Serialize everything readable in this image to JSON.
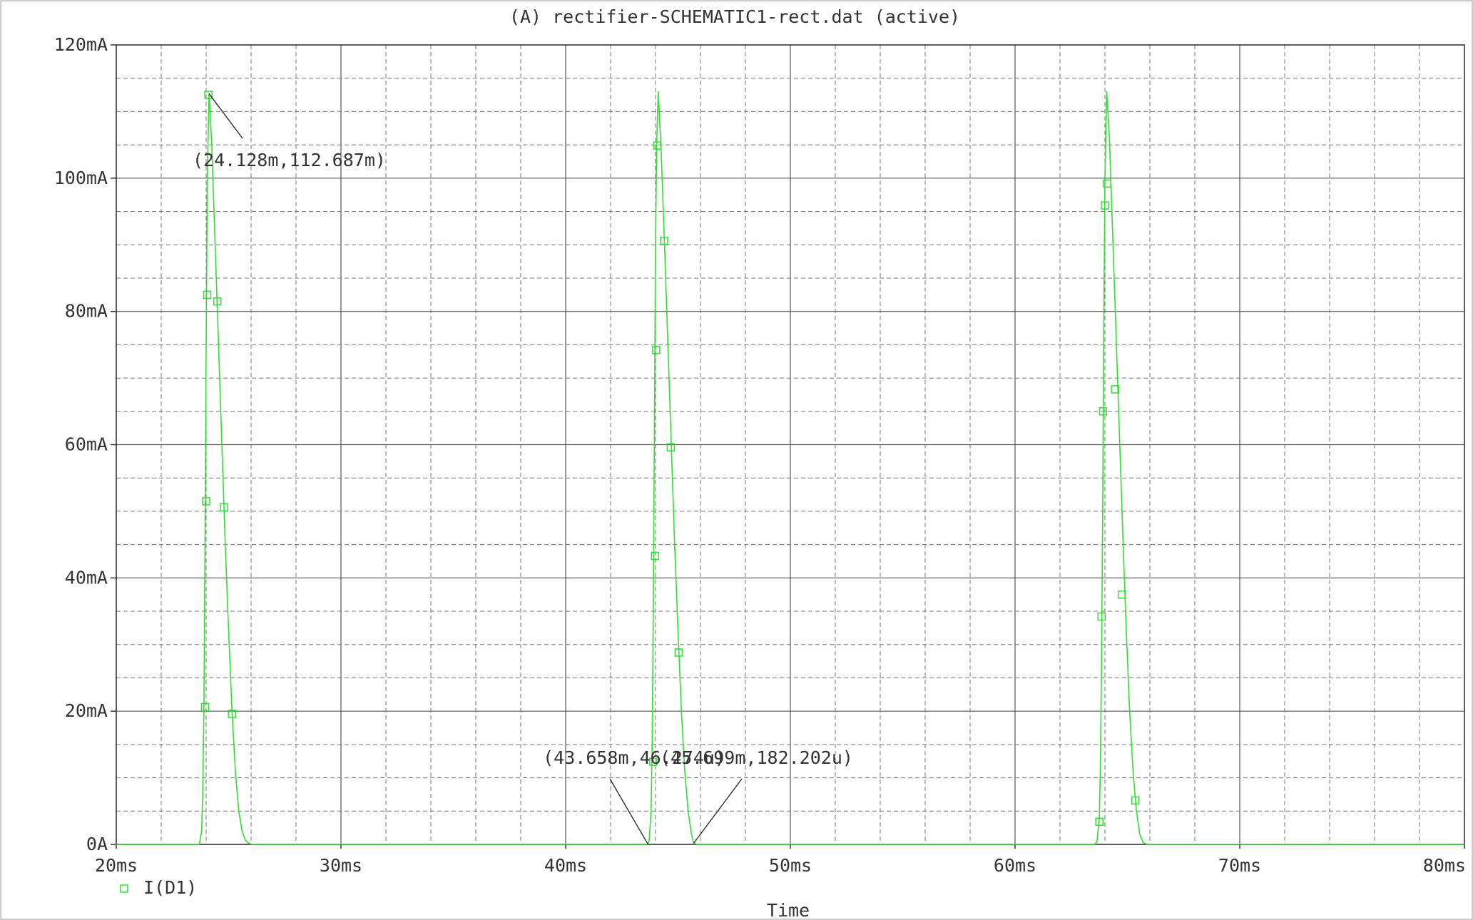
{
  "chart_data": {
    "type": "line",
    "title": "(A) rectifier-SCHEMATIC1-rect.dat (active)",
    "xlabel": "Time",
    "ylabel": "",
    "xlim": [
      20,
      80
    ],
    "ylim": [
      0,
      120
    ],
    "x_unit": "ms",
    "y_unit": "mA",
    "x_ticks": [
      {
        "value": 20,
        "label": "20ms"
      },
      {
        "value": 30,
        "label": "30ms"
      },
      {
        "value": 40,
        "label": "40ms"
      },
      {
        "value": 50,
        "label": "50ms"
      },
      {
        "value": 60,
        "label": "60ms"
      },
      {
        "value": 70,
        "label": "70ms"
      },
      {
        "value": 80,
        "label": "80ms"
      }
    ],
    "y_ticks": [
      {
        "value": 0,
        "label": "0A"
      },
      {
        "value": 20,
        "label": "20mA"
      },
      {
        "value": 40,
        "label": "40mA"
      },
      {
        "value": 60,
        "label": "60mA"
      },
      {
        "value": 80,
        "label": "80mA"
      },
      {
        "value": 100,
        "label": "100mA"
      },
      {
        "value": 120,
        "label": "120mA"
      }
    ],
    "grid": true,
    "series": [
      {
        "name": "I(D1)",
        "color": "#33dd33",
        "marker": "square",
        "x": [
          20.0,
          23.55,
          23.7,
          23.8,
          23.85,
          23.9,
          23.95,
          24.0,
          24.05,
          24.128,
          24.25,
          24.4,
          24.55,
          24.7,
          24.85,
          25.0,
          25.15,
          25.3,
          25.45,
          25.6,
          25.75,
          25.9,
          26.05,
          26.2,
          43.35,
          43.55,
          43.658,
          43.72,
          43.8,
          43.85,
          43.9,
          43.95,
          44.0,
          44.05,
          44.12,
          44.25,
          44.4,
          44.55,
          44.7,
          44.85,
          45.0,
          45.15,
          45.3,
          45.45,
          45.6,
          45.699,
          45.85,
          63.4,
          63.55,
          63.65,
          63.75,
          63.8,
          63.85,
          63.9,
          63.95,
          64.0,
          64.08,
          64.2,
          64.35,
          64.5,
          64.65,
          64.8,
          64.95,
          65.1,
          65.25,
          65.4,
          65.55,
          65.7,
          65.85,
          80.0
        ],
        "y": [
          0,
          0,
          0.05,
          2,
          8,
          20,
          45,
          75,
          100,
          112.687,
          105,
          90,
          75,
          60,
          45,
          32,
          20,
          11,
          5,
          2,
          0.6,
          0.15,
          0.02,
          0,
          0,
          0,
          0.046,
          0.6,
          5,
          15,
          35,
          62,
          90,
          105,
          113,
          104,
          90,
          75,
          60,
          45,
          32,
          20,
          11,
          5,
          1.5,
          0.182,
          0,
          0,
          0,
          0.5,
          4,
          12,
          28,
          50,
          78,
          100,
          113,
          106,
          91,
          76,
          61,
          46,
          32,
          20,
          11,
          5,
          1.5,
          0.3,
          0.02,
          0
        ],
        "markers": [
          [
            23.95,
            20.6
          ],
          [
            24.0,
            51.5
          ],
          [
            24.05,
            82.5
          ],
          [
            24.1,
            112.5
          ],
          [
            24.5,
            81.5
          ],
          [
            24.8,
            50.6
          ],
          [
            25.15,
            19.6
          ],
          [
            43.9,
            12.4
          ],
          [
            43.98,
            43.3
          ],
          [
            44.03,
            74.2
          ],
          [
            44.08,
            104.9
          ],
          [
            44.38,
            90.6
          ],
          [
            44.68,
            59.6
          ],
          [
            45.03,
            28.8
          ],
          [
            63.75,
            3.4
          ],
          [
            63.85,
            34.2
          ],
          [
            63.92,
            65.0
          ],
          [
            64.0,
            95.9
          ],
          [
            64.1,
            99.2
          ],
          [
            64.45,
            68.3
          ],
          [
            64.75,
            37.5
          ],
          [
            65.35,
            6.6
          ]
        ]
      }
    ],
    "annotations": [
      {
        "label": "(24.128m,112.687m)",
        "x": 24.128,
        "y": 112.687
      },
      {
        "label": "(43.658m,46.274u)",
        "x": 43.658,
        "y": 0.046274
      },
      {
        "label": "(45.699m,182.202u)",
        "x": 45.699,
        "y": 0.182202
      }
    ],
    "legend": {
      "placement": "bottom-left"
    }
  }
}
